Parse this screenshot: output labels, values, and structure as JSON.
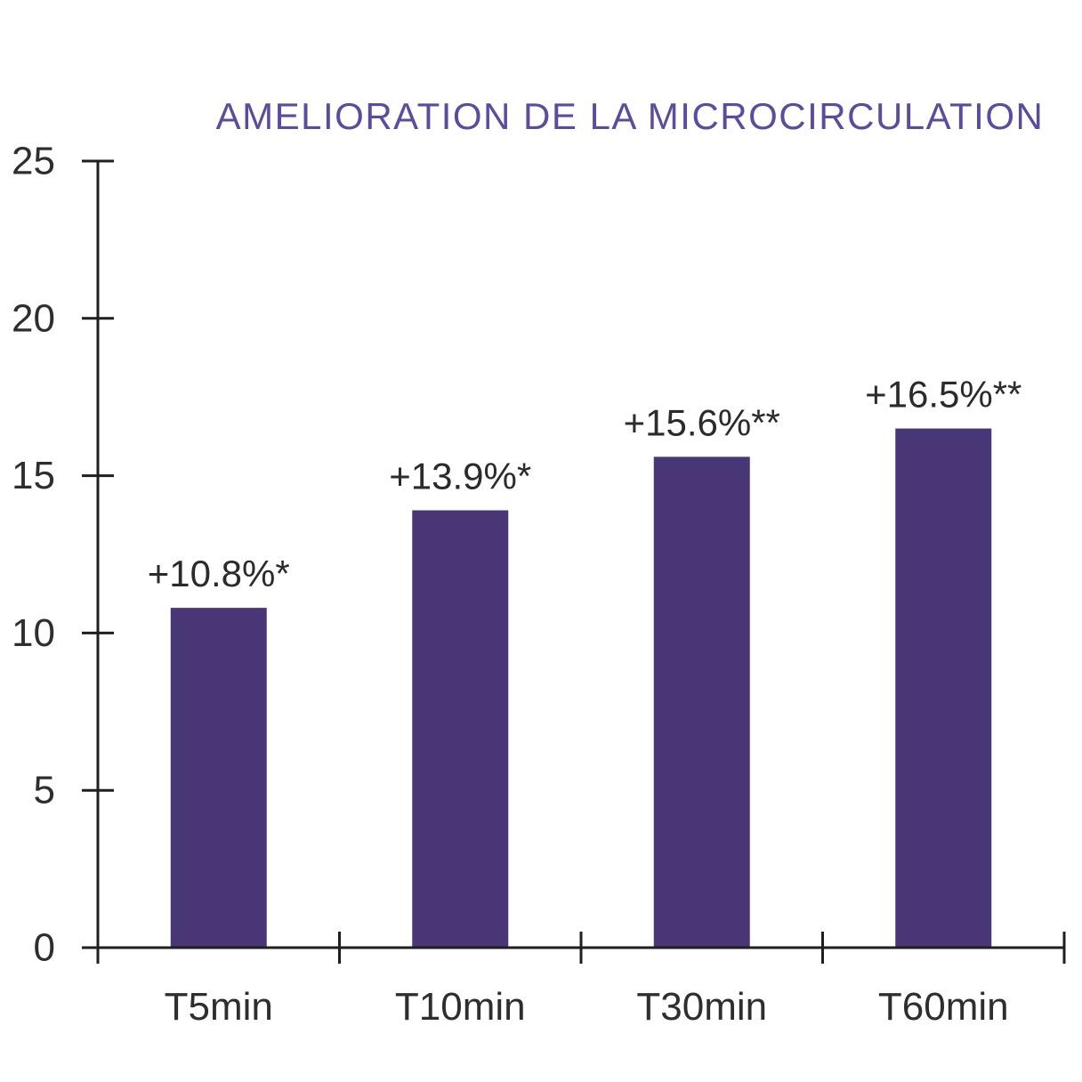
{
  "chart_data": {
    "type": "bar",
    "title": "AMELIORATION DE LA MICROCIRCULATION",
    "categories": [
      "T5min",
      "T10min",
      "T30min",
      "T60min"
    ],
    "values": [
      10.8,
      13.9,
      15.6,
      16.5
    ],
    "bar_labels": [
      "+10.8%*",
      "+13.9%*",
      "+15.6%**",
      "+16.5%**"
    ],
    "y_ticks": [
      0,
      5,
      10,
      15,
      20,
      25
    ],
    "ylim": [
      0,
      25
    ],
    "xlabel": "",
    "ylabel": "",
    "grid": false,
    "legend": "none",
    "colors": {
      "bar": "#483677",
      "title": "#5c4b9e",
      "axis": "#1f1f1f",
      "tick_label": "#2e2e2e",
      "bar_label": "#2b2b2b"
    }
  }
}
